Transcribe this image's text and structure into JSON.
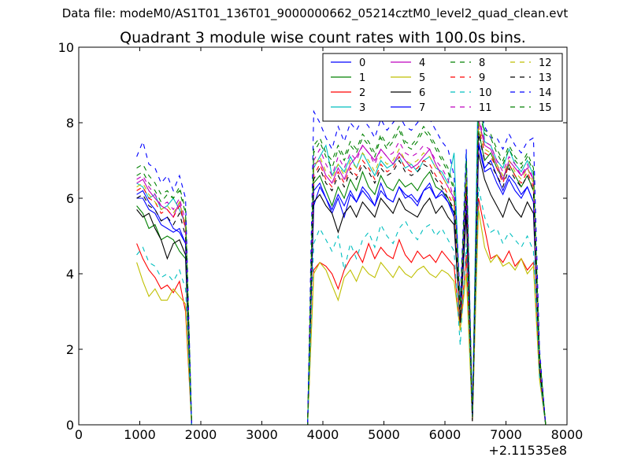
{
  "supertitle": "Data file: modeM0/AS1T01_136T01_9000000662_05214cztM0_level2_quad_clean.evt",
  "chart_data": {
    "type": "line",
    "title": "Quadrant 3 module wise count rates with 100.0s bins.",
    "xlabel": "",
    "ylabel": "",
    "x_offset_label": "+2.11535e8",
    "xlim": [
      0,
      8000
    ],
    "ylim": [
      0,
      10
    ],
    "xticks": [
      0,
      1000,
      2000,
      3000,
      4000,
      5000,
      6000,
      7000,
      8000
    ],
    "xtick_labels": [
      "0",
      "1000",
      "2000",
      "3000",
      "4000",
      "5000",
      "6000",
      "7000",
      "8000"
    ],
    "yticks": [
      0,
      2,
      4,
      6,
      8,
      10
    ],
    "ytick_labels": [
      "0",
      "2",
      "4",
      "6",
      "8",
      "10"
    ],
    "legend_position": "top-right",
    "x": [
      950,
      1050,
      1150,
      1250,
      1350,
      1450,
      1550,
      1650,
      1750,
      1850,
      1950,
      2050,
      2150,
      2250,
      2350,
      2450,
      2550,
      2650,
      2750,
      2850,
      2950,
      3050,
      3150,
      3250,
      3350,
      3450,
      3550,
      3650,
      3750,
      3850,
      3950,
      4050,
      4150,
      4250,
      4350,
      4450,
      4550,
      4650,
      4750,
      4850,
      4950,
      5050,
      5150,
      5250,
      5350,
      5450,
      5550,
      5650,
      5750,
      5850,
      5950,
      6050,
      6150,
      6250,
      6350,
      6450,
      6550,
      6650,
      6750,
      6850,
      6950,
      7050,
      7150,
      7250,
      7350,
      7450,
      7550,
      7650
    ],
    "series": [
      {
        "name": "0",
        "color": "#0000ff",
        "dash": false,
        "values": [
          6.1,
          6.2,
          5.9,
          5.7,
          5.4,
          5.5,
          5.2,
          5.1,
          4.8,
          0,
          0,
          0,
          0,
          0,
          0,
          0,
          0,
          0,
          0,
          0,
          0,
          0,
          0,
          0,
          0,
          0,
          0,
          0,
          0,
          5.8,
          6.3,
          6.0,
          5.6,
          6.0,
          5.5,
          6.1,
          5.9,
          6.2,
          6.0,
          5.8,
          6.4,
          6.0,
          5.9,
          6.3,
          6.1,
          6.0,
          5.8,
          6.2,
          6.4,
          6.0,
          6.1,
          5.9,
          5.5,
          2.8,
          6.0,
          0.1,
          7.5,
          6.8,
          7.0,
          6.6,
          6.2,
          6.6,
          6.4,
          6.1,
          6.3,
          5.9,
          1.6,
          0
        ]
      },
      {
        "name": "1",
        "color": "#008000",
        "dash": false,
        "values": [
          5.8,
          5.6,
          5.2,
          5.3,
          4.9,
          5.0,
          4.9,
          4.6,
          4.4,
          0,
          0,
          0,
          0,
          0,
          0,
          0,
          0,
          0,
          0,
          0,
          0,
          0,
          0,
          0,
          0,
          0,
          0,
          0,
          0,
          6.4,
          6.6,
          6.2,
          5.8,
          6.3,
          6.0,
          6.5,
          6.2,
          6.7,
          6.3,
          6.1,
          6.6,
          6.3,
          6.2,
          6.5,
          6.3,
          6.4,
          6.2,
          6.5,
          6.7,
          6.3,
          6.2,
          6.0,
          5.6,
          2.9,
          6.3,
          0.1,
          7.8,
          7.0,
          7.2,
          6.8,
          6.5,
          6.9,
          6.6,
          6.3,
          6.6,
          6.2,
          1.7,
          0
        ]
      },
      {
        "name": "2",
        "color": "#ff0000",
        "dash": false,
        "values": [
          4.8,
          4.4,
          4.1,
          3.9,
          3.6,
          3.7,
          3.5,
          3.8,
          3.0,
          0,
          0,
          0,
          0,
          0,
          0,
          0,
          0,
          0,
          0,
          0,
          0,
          0,
          0,
          0,
          0,
          0,
          0,
          0,
          0,
          4.1,
          4.3,
          4.2,
          4.0,
          3.6,
          4.1,
          4.4,
          4.6,
          4.3,
          4.8,
          4.4,
          4.7,
          4.5,
          4.4,
          4.9,
          4.5,
          4.3,
          4.6,
          4.4,
          4.5,
          4.3,
          4.6,
          4.4,
          4.2,
          2.5,
          4.5,
          0.1,
          6.0,
          5.2,
          4.4,
          4.5,
          4.3,
          4.6,
          4.2,
          4.4,
          4.1,
          4.3,
          1.4,
          0
        ]
      },
      {
        "name": "3",
        "color": "#00bfbf",
        "dash": false,
        "values": [
          6.4,
          6.3,
          6.0,
          6.1,
          5.7,
          5.8,
          6.0,
          5.7,
          5.3,
          0,
          0,
          0,
          0,
          0,
          0,
          0,
          0,
          0,
          0,
          0,
          0,
          0,
          0,
          0,
          0,
          0,
          0,
          0,
          0,
          6.8,
          7.1,
          7.4,
          6.6,
          6.9,
          6.7,
          7.1,
          6.8,
          7.2,
          6.9,
          6.6,
          7.0,
          6.8,
          6.9,
          7.1,
          6.8,
          6.9,
          6.7,
          7.0,
          7.1,
          6.8,
          6.7,
          6.4,
          7.2,
          3.0,
          7.2,
          0.2,
          9.6,
          7.5,
          7.4,
          7.0,
          6.8,
          7.3,
          6.9,
          6.7,
          7.0,
          6.6,
          1.8,
          0
        ]
      },
      {
        "name": "4",
        "color": "#bf00bf",
        "dash": false,
        "values": [
          6.4,
          6.5,
          6.2,
          6.0,
          5.8,
          5.7,
          5.5,
          5.9,
          5.2,
          0,
          0,
          0,
          0,
          0,
          0,
          0,
          0,
          0,
          0,
          0,
          0,
          0,
          0,
          0,
          0,
          0,
          0,
          0,
          0,
          6.9,
          7.0,
          6.6,
          6.4,
          6.8,
          6.5,
          6.9,
          7.1,
          7.4,
          7.2,
          7.0,
          7.3,
          7.1,
          6.9,
          7.2,
          7.0,
          6.8,
          6.9,
          7.1,
          7.3,
          6.9,
          6.6,
          6.3,
          6.0,
          3.0,
          6.5,
          0.1,
          8.1,
          7.4,
          7.3,
          6.9,
          6.5,
          7.0,
          6.8,
          6.6,
          6.8,
          6.5,
          1.7,
          0
        ]
      },
      {
        "name": "5",
        "color": "#bfbf00",
        "dash": false,
        "values": [
          4.3,
          3.8,
          3.4,
          3.6,
          3.3,
          3.3,
          3.6,
          3.4,
          3.2,
          0,
          0,
          0,
          0,
          0,
          0,
          0,
          0,
          0,
          0,
          0,
          0,
          0,
          0,
          0,
          0,
          0,
          0,
          0,
          0,
          4.0,
          4.3,
          4.1,
          3.7,
          3.3,
          3.9,
          4.1,
          3.8,
          4.2,
          4.0,
          3.9,
          4.3,
          4.1,
          3.9,
          4.2,
          4.0,
          3.9,
          4.1,
          4.2,
          4.0,
          3.9,
          4.1,
          4.0,
          3.8,
          2.5,
          4.0,
          0.1,
          5.7,
          4.7,
          4.3,
          4.5,
          4.2,
          4.3,
          4.1,
          4.4,
          4.0,
          4.2,
          1.2,
          0
        ]
      },
      {
        "name": "6",
        "color": "#000000",
        "dash": false,
        "values": [
          5.7,
          5.5,
          5.6,
          5.2,
          4.9,
          4.4,
          4.8,
          4.9,
          4.5,
          0,
          0,
          0,
          0,
          0,
          0,
          0,
          0,
          0,
          0,
          0,
          0,
          0,
          0,
          0,
          0,
          0,
          0,
          0,
          0,
          5.9,
          6.1,
          5.8,
          5.6,
          5.1,
          5.6,
          5.8,
          5.5,
          5.9,
          5.7,
          5.5,
          6.0,
          5.8,
          5.6,
          6.0,
          5.7,
          5.6,
          5.5,
          5.8,
          6.0,
          5.6,
          5.8,
          5.5,
          5.3,
          2.7,
          5.6,
          0.1,
          7.2,
          6.5,
          6.1,
          5.8,
          5.5,
          6.0,
          5.7,
          5.5,
          5.9,
          5.6,
          1.5,
          0
        ]
      },
      {
        "name": "7",
        "color": "#0000ff",
        "dash": false,
        "values": [
          6.0,
          6.0,
          5.7,
          5.6,
          5.3,
          5.2,
          5.1,
          5.2,
          4.8,
          0,
          0,
          0,
          0,
          0,
          0,
          0,
          0,
          0,
          0,
          0,
          0,
          0,
          0,
          0,
          0,
          0,
          0,
          0,
          0,
          6.2,
          6.4,
          6.0,
          5.7,
          6.1,
          5.8,
          6.2,
          5.9,
          6.3,
          6.1,
          5.8,
          6.2,
          6.0,
          5.9,
          6.3,
          6.0,
          6.1,
          5.9,
          6.2,
          6.3,
          6.0,
          6.2,
          5.9,
          5.6,
          2.8,
          6.1,
          0.1,
          7.4,
          6.7,
          6.8,
          6.4,
          6.1,
          6.5,
          6.2,
          6.0,
          6.3,
          5.9,
          1.6,
          0
        ]
      },
      {
        "name": "8",
        "color": "#008000",
        "dash": true,
        "values": [
          6.6,
          6.7,
          6.4,
          6.2,
          5.9,
          6.1,
          6.0,
          6.2,
          5.6,
          0,
          0,
          0,
          0,
          0,
          0,
          0,
          0,
          0,
          0,
          0,
          0,
          0,
          0,
          0,
          0,
          0,
          0,
          0,
          0,
          7.2,
          7.5,
          7.1,
          6.8,
          7.3,
          7.0,
          7.4,
          7.2,
          7.6,
          7.4,
          7.1,
          7.6,
          7.3,
          7.5,
          7.8,
          7.4,
          7.3,
          7.5,
          7.8,
          7.6,
          7.3,
          7.0,
          6.7,
          6.2,
          3.1,
          6.9,
          0.2,
          8.4,
          7.7,
          7.6,
          7.2,
          6.9,
          7.3,
          7.0,
          6.8,
          7.1,
          6.7,
          1.9,
          0
        ]
      },
      {
        "name": "9",
        "color": "#ff0000",
        "dash": true,
        "values": [
          6.2,
          6.3,
          6.0,
          5.9,
          5.6,
          5.7,
          5.5,
          5.8,
          5.2,
          0,
          0,
          0,
          0,
          0,
          0,
          0,
          0,
          0,
          0,
          0,
          0,
          0,
          0,
          0,
          0,
          0,
          0,
          0,
          0,
          6.6,
          6.9,
          6.5,
          6.3,
          6.7,
          6.4,
          6.8,
          6.6,
          7.0,
          6.8,
          6.5,
          6.9,
          6.7,
          6.8,
          7.1,
          6.8,
          6.7,
          6.8,
          7.0,
          6.9,
          6.6,
          6.4,
          6.1,
          5.8,
          2.9,
          6.4,
          0.1,
          7.9,
          7.2,
          7.1,
          6.8,
          6.4,
          6.9,
          6.6,
          6.4,
          6.7,
          6.3,
          1.7,
          0
        ]
      },
      {
        "name": "10",
        "color": "#00bfbf",
        "dash": true,
        "values": [
          4.5,
          4.7,
          4.3,
          4.2,
          3.9,
          4.0,
          3.8,
          4.1,
          3.6,
          0,
          0,
          0,
          0,
          0,
          0,
          0,
          0,
          0,
          0,
          0,
          0,
          0,
          0,
          0,
          0,
          0,
          0,
          0,
          0,
          4.8,
          5.2,
          4.9,
          4.6,
          5.0,
          4.1,
          4.8,
          4.4,
          4.9,
          5.1,
          4.7,
          5.3,
          5.0,
          4.8,
          5.2,
          5.4,
          5.1,
          4.9,
          5.2,
          5.3,
          5.0,
          5.2,
          4.9,
          4.6,
          2.1,
          4.8,
          0.1,
          6.3,
          5.5,
          5.1,
          5.2,
          4.8,
          5.1,
          4.9,
          4.7,
          5.0,
          4.6,
          1.3,
          0
        ]
      },
      {
        "name": "11",
        "color": "#bf00bf",
        "dash": true,
        "values": [
          6.5,
          6.6,
          6.3,
          6.1,
          5.8,
          5.9,
          5.7,
          6.0,
          5.4,
          0,
          0,
          0,
          0,
          0,
          0,
          0,
          0,
          0,
          0,
          0,
          0,
          0,
          0,
          0,
          0,
          0,
          0,
          0,
          0,
          7.0,
          7.3,
          6.9,
          6.6,
          7.1,
          6.8,
          7.2,
          7.0,
          7.4,
          7.2,
          6.9,
          7.3,
          7.1,
          7.2,
          7.5,
          7.2,
          7.1,
          7.2,
          7.4,
          7.3,
          7.0,
          6.8,
          6.5,
          6.0,
          3.0,
          6.7,
          0.1,
          8.2,
          7.5,
          7.4,
          7.0,
          6.7,
          7.1,
          6.9,
          6.6,
          6.9,
          6.5,
          1.8,
          0
        ]
      },
      {
        "name": "12",
        "color": "#bfbf00",
        "dash": true,
        "values": [
          6.3,
          6.4,
          6.1,
          5.9,
          5.7,
          5.8,
          5.6,
          5.9,
          5.3,
          0,
          0,
          0,
          0,
          0,
          0,
          0,
          0,
          0,
          0,
          0,
          0,
          0,
          0,
          0,
          0,
          0,
          0,
          0,
          0,
          6.8,
          7.1,
          6.7,
          6.5,
          6.9,
          6.6,
          7.0,
          6.8,
          7.2,
          7.0,
          6.7,
          7.1,
          6.9,
          7.0,
          7.3,
          7.0,
          6.9,
          7.0,
          7.2,
          7.1,
          6.8,
          6.6,
          6.3,
          5.9,
          2.9,
          6.6,
          0.1,
          8.0,
          7.3,
          7.2,
          6.9,
          6.6,
          7.0,
          6.7,
          6.5,
          6.8,
          6.4,
          1.7,
          0
        ]
      },
      {
        "name": "13",
        "color": "#000000",
        "dash": true,
        "values": [
          6.0,
          6.1,
          5.8,
          5.7,
          5.4,
          5.5,
          5.3,
          5.6,
          5.0,
          0,
          0,
          0,
          0,
          0,
          0,
          0,
          0,
          0,
          0,
          0,
          0,
          0,
          0,
          0,
          0,
          0,
          0,
          0,
          0,
          6.5,
          6.8,
          6.4,
          6.2,
          6.6,
          6.3,
          6.7,
          6.5,
          6.9,
          6.7,
          6.4,
          6.8,
          6.6,
          6.7,
          7.0,
          6.7,
          6.6,
          6.7,
          6.9,
          6.8,
          6.5,
          6.3,
          6.0,
          5.7,
          2.8,
          6.3,
          0.1,
          7.7,
          7.0,
          6.9,
          6.6,
          6.3,
          6.8,
          6.5,
          6.3,
          6.6,
          6.2,
          1.6,
          0
        ]
      },
      {
        "name": "14",
        "color": "#0000ff",
        "dash": true,
        "values": [
          7.1,
          7.5,
          6.9,
          6.8,
          6.4,
          6.6,
          6.2,
          6.6,
          6.0,
          0,
          0,
          0,
          0,
          0,
          0,
          0,
          0,
          0,
          0,
          0,
          0,
          0,
          0,
          0,
          0,
          0,
          0,
          0,
          0,
          8.3,
          8.0,
          7.6,
          7.3,
          7.9,
          7.5,
          8.0,
          7.8,
          8.1,
          7.9,
          7.6,
          8.1,
          7.8,
          8.0,
          8.2,
          7.9,
          7.8,
          8.0,
          8.2,
          8.1,
          7.8,
          7.5,
          7.3,
          6.6,
          3.3,
          7.3,
          0.2,
          8.6,
          7.9,
          7.6,
          7.6,
          7.3,
          7.7,
          7.4,
          7.2,
          7.5,
          7.6,
          2.0,
          0
        ]
      },
      {
        "name": "15",
        "color": "#008000",
        "dash": true,
        "values": [
          6.8,
          6.9,
          6.6,
          6.4,
          6.1,
          6.2,
          6.0,
          6.3,
          5.7,
          0,
          0,
          0,
          0,
          0,
          0,
          0,
          0,
          0,
          0,
          0,
          0,
          0,
          0,
          0,
          0,
          0,
          0,
          0,
          0,
          7.4,
          7.6,
          7.2,
          7.0,
          7.4,
          7.1,
          7.5,
          7.3,
          7.7,
          7.5,
          7.2,
          7.7,
          7.4,
          7.6,
          7.9,
          7.5,
          7.4,
          7.6,
          7.9,
          7.7,
          7.4,
          7.1,
          6.8,
          6.3,
          3.1,
          7.0,
          0.2,
          8.5,
          7.8,
          7.7,
          7.3,
          7.0,
          7.4,
          7.1,
          6.9,
          7.2,
          6.8,
          1.9,
          0
        ]
      }
    ]
  }
}
